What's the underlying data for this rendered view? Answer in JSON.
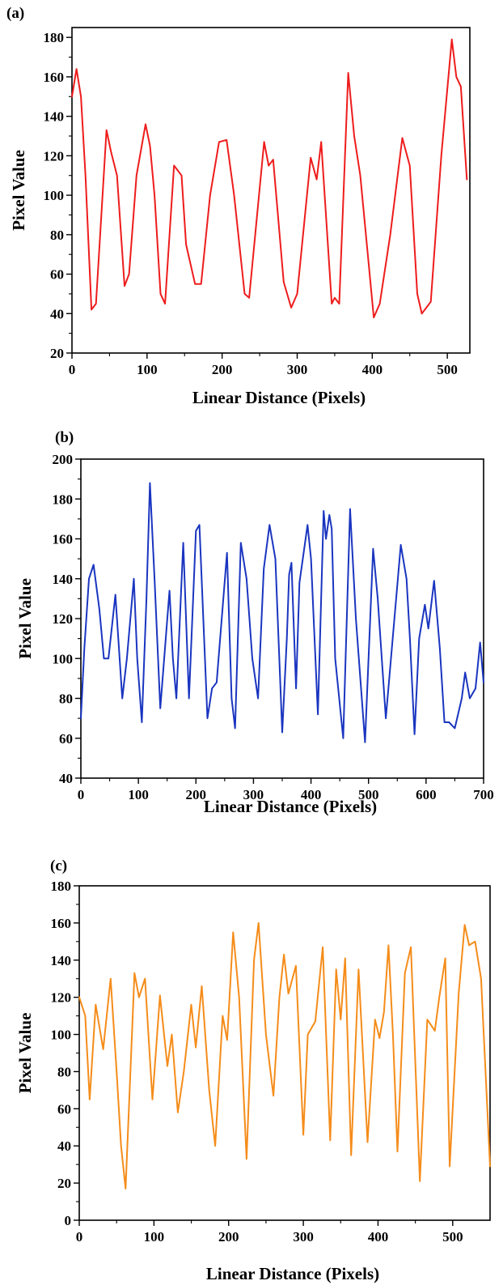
{
  "chart_data": [
    {
      "type": "line",
      "panel_label": "(a)",
      "title": "",
      "xlabel": "Linear Distance (Pixels)",
      "ylabel": "Pixel Value",
      "xlim": [
        0,
        530
      ],
      "ylim": [
        20,
        185
      ],
      "xticks": [
        0,
        100,
        200,
        300,
        400,
        500
      ],
      "yticks": [
        20,
        40,
        60,
        80,
        100,
        120,
        140,
        160,
        180
      ],
      "grid": false,
      "color": "#ee1c1c",
      "series": [
        {
          "x": [
            0,
            6,
            12,
            18,
            26,
            32,
            46,
            52,
            60,
            70,
            76,
            86,
            98,
            104,
            110,
            118,
            124,
            136,
            146,
            152,
            164,
            172,
            184,
            196,
            206,
            216,
            230,
            236,
            256,
            262,
            268,
            282,
            292,
            300,
            318,
            326,
            332,
            346,
            350,
            356,
            368,
            376,
            384,
            394,
            402,
            410,
            424,
            440,
            450,
            460,
            466,
            478,
            492,
            506,
            512,
            518,
            526
          ],
          "y": [
            150,
            164,
            150,
            110,
            42,
            45,
            133,
            122,
            110,
            54,
            60,
            110,
            136,
            125,
            100,
            50,
            45,
            115,
            110,
            75,
            55,
            55,
            100,
            127,
            128,
            100,
            50,
            48,
            127,
            115,
            118,
            56,
            43,
            50,
            119,
            108,
            127,
            45,
            48,
            45,
            162,
            130,
            110,
            70,
            38,
            45,
            80,
            129,
            115,
            50,
            40,
            46,
            120,
            179,
            160,
            155,
            108
          ]
        }
      ]
    },
    {
      "type": "line",
      "panel_label": "(b)",
      "title": "",
      "xlabel": "Linear Distance (Pixels)",
      "ylabel": "Pixel Value",
      "xlim": [
        0,
        700
      ],
      "ylim": [
        40,
        200
      ],
      "xticks": [
        0,
        100,
        200,
        300,
        400,
        500,
        600,
        700
      ],
      "yticks": [
        40,
        60,
        80,
        100,
        120,
        140,
        160,
        180,
        200
      ],
      "grid": false,
      "color": "#1a35c0",
      "series": [
        {
          "x": [
            0,
            6,
            14,
            22,
            32,
            40,
            48,
            60,
            72,
            80,
            92,
            98,
            106,
            114,
            120,
            128,
            138,
            154,
            160,
            166,
            178,
            188,
            200,
            206,
            220,
            228,
            236,
            254,
            262,
            268,
            278,
            288,
            298,
            308,
            318,
            328,
            338,
            350,
            358,
            362,
            366,
            374,
            380,
            394,
            400,
            412,
            422,
            426,
            432,
            436,
            442,
            456,
            468,
            478,
            494,
            508,
            516,
            530,
            542,
            556,
            566,
            572,
            580,
            588,
            598,
            604,
            614,
            624,
            632,
            640,
            650,
            662,
            668,
            676,
            686,
            694,
            700
          ],
          "y": [
            70,
            105,
            140,
            147,
            125,
            100,
            100,
            132,
            80,
            100,
            140,
            100,
            68,
            130,
            188,
            140,
            75,
            134,
            100,
            80,
            158,
            80,
            164,
            167,
            70,
            85,
            88,
            153,
            80,
            65,
            158,
            140,
            100,
            80,
            145,
            167,
            150,
            63,
            110,
            142,
            148,
            85,
            138,
            167,
            150,
            72,
            174,
            160,
            172,
            165,
            100,
            60,
            175,
            120,
            58,
            155,
            130,
            70,
            110,
            157,
            140,
            110,
            62,
            110,
            127,
            115,
            139,
            105,
            68,
            68,
            65,
            80,
            93,
            80,
            85,
            108,
            88
          ]
        }
      ]
    },
    {
      "type": "line",
      "panel_label": "(c)",
      "title": "",
      "xlabel": "Linear Distance (Pixels)",
      "ylabel": "Pixel Value",
      "xlim": [
        0,
        550
      ],
      "ylim": [
        0,
        180
      ],
      "xticks": [
        0,
        100,
        200,
        300,
        400,
        500
      ],
      "yticks": [
        0,
        20,
        40,
        60,
        80,
        100,
        120,
        140,
        160,
        180
      ],
      "grid": false,
      "color": "#f58c1a",
      "series": [
        {
          "x": [
            0,
            8,
            14,
            22,
            32,
            42,
            50,
            56,
            62,
            74,
            80,
            88,
            98,
            108,
            118,
            124,
            132,
            140,
            150,
            156,
            164,
            174,
            182,
            192,
            198,
            206,
            214,
            224,
            234,
            240,
            250,
            260,
            268,
            274,
            280,
            290,
            300,
            306,
            316,
            326,
            336,
            344,
            350,
            356,
            364,
            374,
            386,
            396,
            402,
            408,
            414,
            420,
            426,
            436,
            444,
            456,
            466,
            476,
            482,
            490,
            496,
            508,
            516,
            522,
            530,
            538,
            550
          ],
          "y": [
            120,
            110,
            65,
            116,
            92,
            130,
            80,
            40,
            17,
            133,
            120,
            130,
            65,
            121,
            83,
            100,
            58,
            80,
            116,
            93,
            126,
            70,
            40,
            110,
            97,
            155,
            120,
            33,
            140,
            160,
            100,
            67,
            120,
            143,
            122,
            137,
            46,
            100,
            107,
            147,
            43,
            135,
            108,
            141,
            35,
            135,
            42,
            108,
            98,
            112,
            148,
            100,
            37,
            133,
            147,
            21,
            108,
            102,
            120,
            141,
            29,
            122,
            159,
            148,
            150,
            130,
            29
          ]
        }
      ]
    }
  ]
}
